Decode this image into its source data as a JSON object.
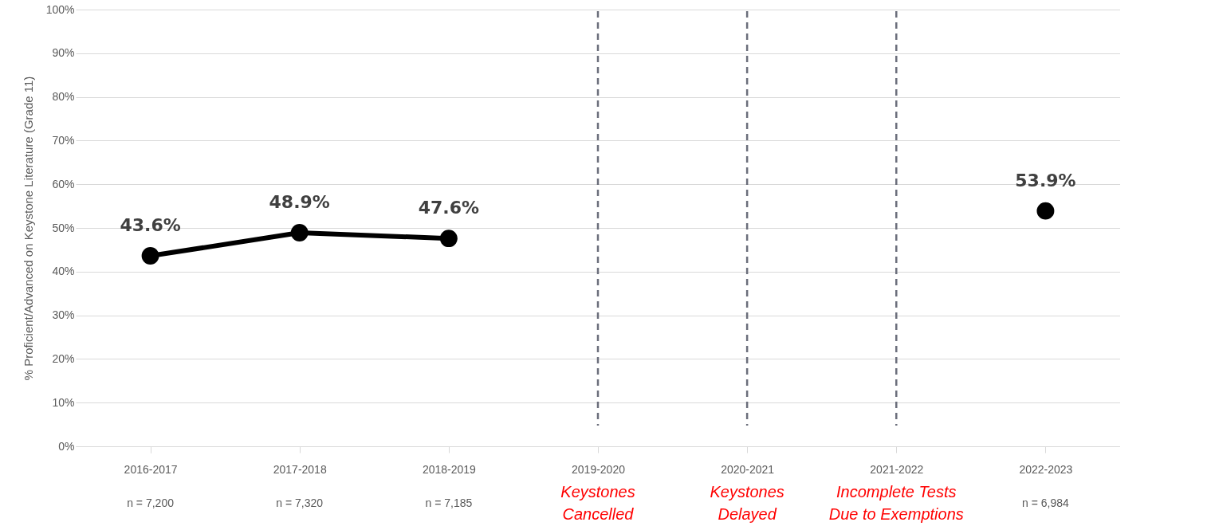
{
  "chart_data": {
    "type": "line",
    "ylabel": "% Proficient/Advanced on Keystone Literature (Grade 11)",
    "categories": [
      "2016-2017",
      "2017-2018",
      "2018-2019",
      "2019-2020",
      "2020-2021",
      "2021-2022",
      "2022-2023"
    ],
    "series": [
      {
        "color": "#000000",
        "values": [
          43.6,
          48.9,
          47.6,
          null,
          null,
          null,
          53.9
        ],
        "value_labels": [
          "43.6%",
          "48.9%",
          "47.6%",
          null,
          null,
          null,
          "53.9%"
        ]
      }
    ],
    "ylim": [
      0,
      100
    ],
    "yticks": [
      {
        "value": 0,
        "label": "0%"
      },
      {
        "value": 10,
        "label": "10%"
      },
      {
        "value": 20,
        "label": "20%"
      },
      {
        "value": 30,
        "label": "30%"
      },
      {
        "value": 40,
        "label": "40%"
      },
      {
        "value": 50,
        "label": "50%"
      },
      {
        "value": 60,
        "label": "60%"
      },
      {
        "value": 70,
        "label": "70%"
      },
      {
        "value": 80,
        "label": "80%"
      },
      {
        "value": 90,
        "label": "90%"
      },
      {
        "value": 100,
        "label": "100%"
      }
    ],
    "grid": "y",
    "marker": "circle",
    "line_style": "solid",
    "ref_lines": [
      {
        "axis": "x",
        "value": "2019-2020",
        "color": "#6b6e7b",
        "line_style": "dashed"
      },
      {
        "axis": "x",
        "value": "2020-2021",
        "color": "#6b6e7b",
        "line_style": "dashed"
      },
      {
        "axis": "x",
        "value": "2021-2022",
        "color": "#6b6e7b",
        "line_style": "dashed"
      }
    ],
    "annotations": [
      "n = 7,200",
      "n = 7,320",
      "n = 7,185",
      "Keystones Cancelled",
      "Keystones Delayed",
      "Incomplete Tests Due to Exemptions",
      "n = 6,984"
    ]
  }
}
